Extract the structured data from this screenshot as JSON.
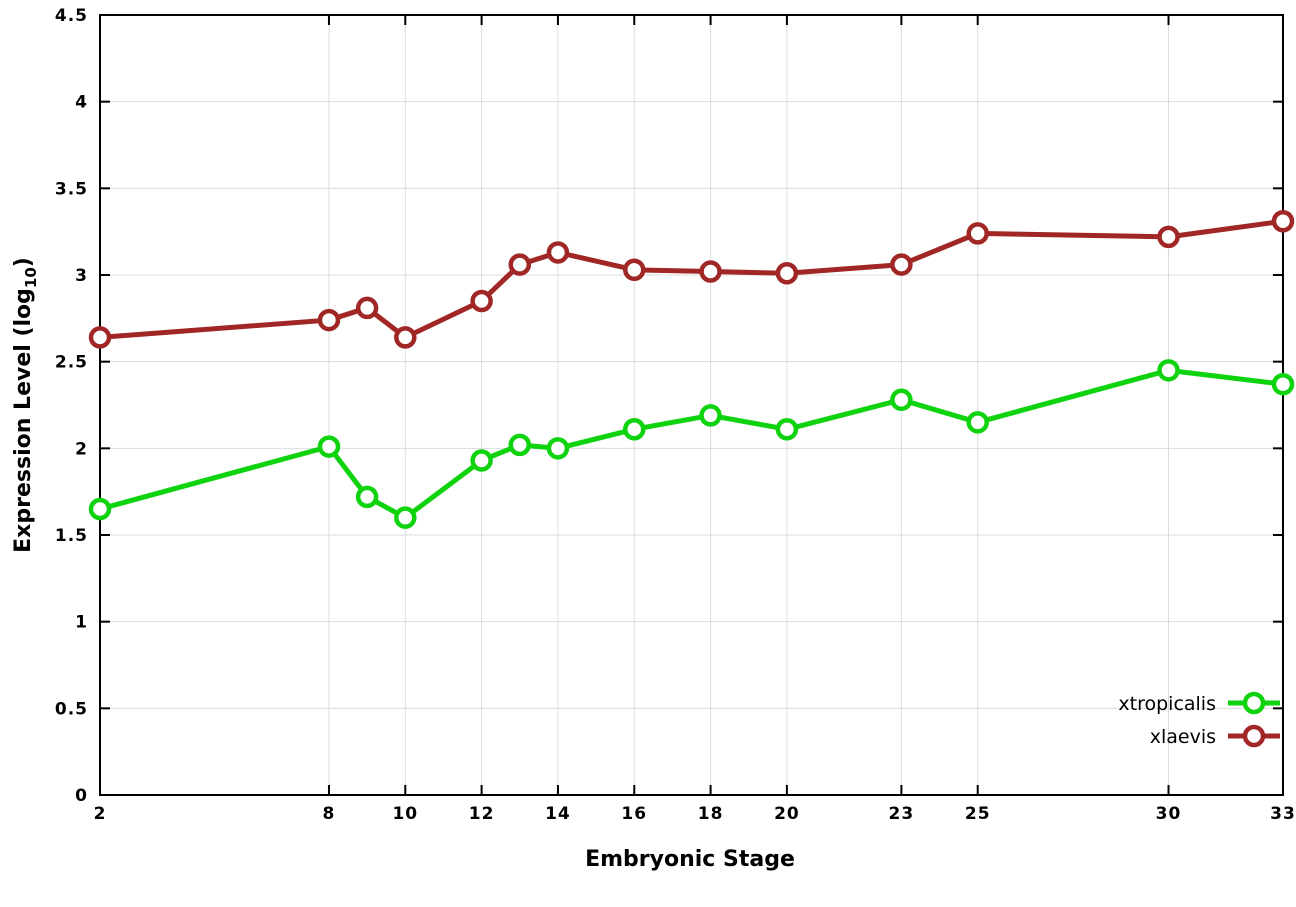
{
  "chart_data": {
    "type": "line",
    "title": "",
    "xlabel": "Embryonic Stage",
    "ylabel_parts": {
      "pre": "Expression Level (log",
      "sub": "10",
      "post": ")"
    },
    "x": [
      2,
      8,
      9,
      10,
      12,
      13,
      14,
      16,
      18,
      20,
      23,
      25,
      30,
      33
    ],
    "x_ticks": [
      2,
      8,
      10,
      12,
      14,
      16,
      18,
      20,
      23,
      25,
      30,
      33
    ],
    "xlim": [
      2,
      33
    ],
    "ylim": [
      0,
      4.5
    ],
    "y_tick_step": 0.5,
    "grid": true,
    "legend_position": "bottom-right",
    "series": [
      {
        "name": "xtropicalis",
        "color": "#0ed30e",
        "values": [
          1.65,
          2.01,
          1.72,
          1.6,
          1.93,
          2.02,
          2.0,
          2.11,
          2.19,
          2.11,
          2.28,
          2.15,
          2.45,
          2.37
        ]
      },
      {
        "name": "xlaevis",
        "color": "#a12727",
        "values": [
          2.64,
          2.74,
          2.81,
          2.64,
          2.85,
          3.06,
          3.13,
          3.03,
          3.02,
          3.01,
          3.06,
          3.24,
          3.22,
          3.31
        ]
      }
    ],
    "background": "#ffffff",
    "grid_color": "#dcdcdc",
    "axis_color": "#000000"
  }
}
